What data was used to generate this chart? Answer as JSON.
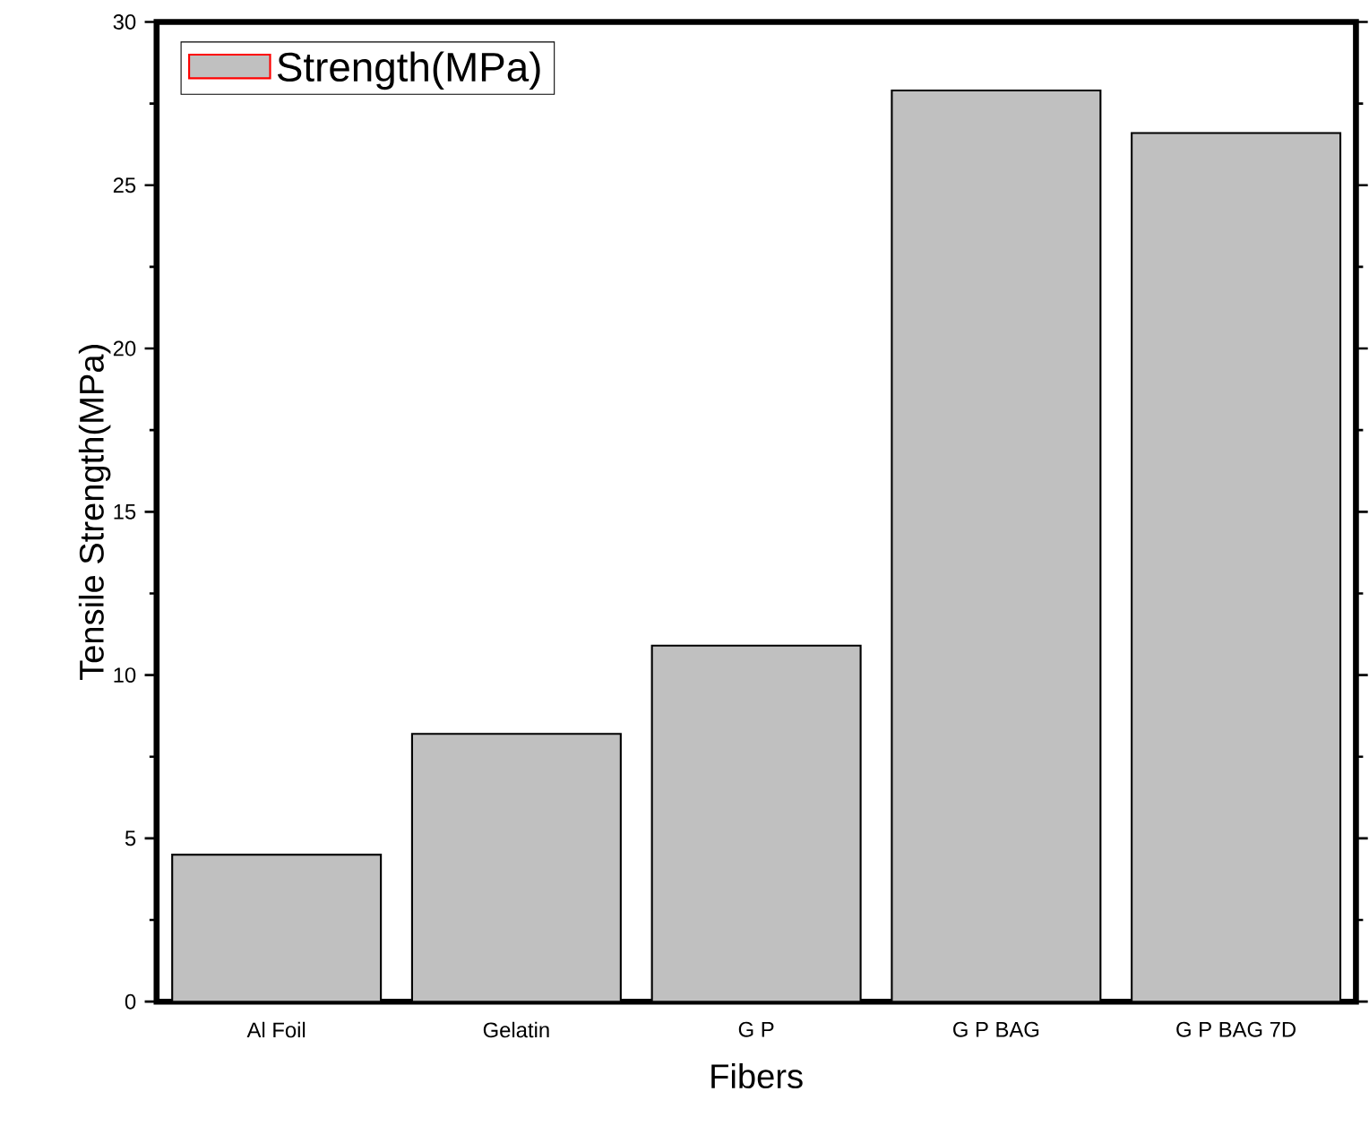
{
  "chart_data": {
    "type": "bar",
    "xlabel": "Fibers",
    "ylabel": "Tensile Strength(MPa)",
    "categories": [
      "Al Foil",
      "Gelatin",
      "G P",
      "G P BAG",
      "G P BAG 7D"
    ],
    "series": [
      {
        "name": "Strength(MPa)",
        "color": "#c0c0c0",
        "values": [
          4.5,
          8.2,
          10.9,
          27.9,
          26.6
        ]
      }
    ],
    "ylim": [
      0,
      30
    ],
    "yticks": [
      0,
      5,
      10,
      15,
      20,
      25,
      30
    ],
    "legend": "top left",
    "grid": false
  }
}
